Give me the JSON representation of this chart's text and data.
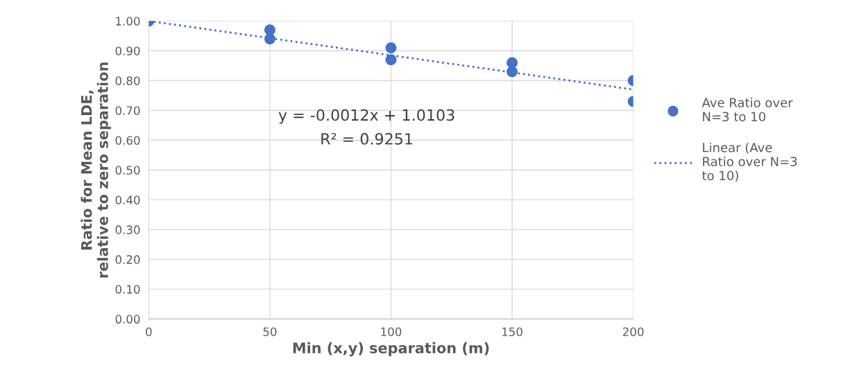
{
  "chart_data": {
    "type": "scatter",
    "xlabel": "Min (x,y) separation (m)",
    "ylabel": "Ratio for Mean LDE,\nrelative to zero separation",
    "series": [
      {
        "name": "Ave Ratio over N=3 to 10",
        "color": "#4472c4",
        "marker": "circle",
        "x": [
          0,
          50,
          50,
          100,
          100,
          150,
          150,
          200,
          200
        ],
        "values": [
          1.0,
          0.97,
          0.94,
          0.91,
          0.87,
          0.86,
          0.83,
          0.8,
          0.73
        ]
      },
      {
        "name": "Linear (Ave Ratio over N=3 to 10)",
        "type": "line",
        "color": "#4472c4",
        "line_style": "dotted",
        "x": [
          0,
          200
        ],
        "values": [
          1.0,
          0.77
        ]
      }
    ],
    "annotations": [
      "y = -0.0012x + 1.0103",
      "R² = 0.9251"
    ],
    "xlim": [
      0,
      200
    ],
    "xticks": [
      0,
      50,
      100,
      150,
      200
    ],
    "ylim": [
      0,
      1
    ],
    "yticks": [
      {
        "value": 0,
        "label": "0.00"
      },
      {
        "value": 0.1,
        "label": "0.10"
      },
      {
        "value": 0.2,
        "label": "0.20"
      },
      {
        "value": 0.3,
        "label": "0.30"
      },
      {
        "value": 0.4,
        "label": "0.40"
      },
      {
        "value": 0.5,
        "label": "0.50"
      },
      {
        "value": 0.6,
        "label": "0.60"
      },
      {
        "value": 0.7,
        "label": "0.70"
      },
      {
        "value": 0.8,
        "label": "0.80"
      },
      {
        "value": 0.9,
        "label": "0.90"
      },
      {
        "value": 1,
        "label": "1.00"
      }
    ],
    "grid": true,
    "legend": "right"
  }
}
